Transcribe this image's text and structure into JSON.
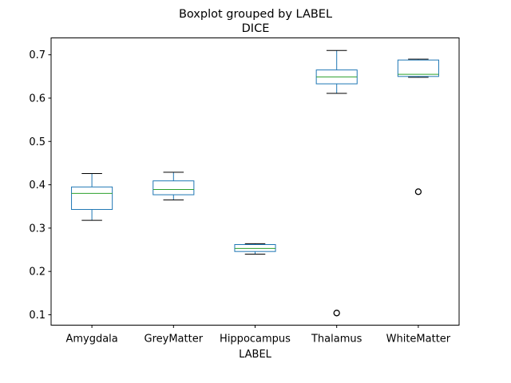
{
  "chart_data": {
    "type": "boxplot",
    "suptitle": "Boxplot grouped by LABEL",
    "title": "DICE",
    "xlabel": "LABEL",
    "ylabel": "",
    "ylim": [
      0.076,
      0.739
    ],
    "yticks": [
      "0.1",
      "0.2",
      "0.3",
      "0.4",
      "0.5",
      "0.6",
      "0.7"
    ],
    "grid": false,
    "colors": {
      "box": "#1f77b4",
      "median": "#2ca02c",
      "whisker": "#1f77b4",
      "cap": "#000000",
      "flier": "#000000"
    },
    "categories": [
      "Amygdala",
      "GreyMatter",
      "Hippocampus",
      "Thalamus",
      "WhiteMatter"
    ],
    "boxes": [
      {
        "label": "Amygdala",
        "whislo": 0.318,
        "q1": 0.343,
        "med": 0.38,
        "q3": 0.395,
        "whishi": 0.426,
        "fliers": []
      },
      {
        "label": "GreyMatter",
        "whislo": 0.365,
        "q1": 0.377,
        "med": 0.389,
        "q3": 0.409,
        "whishi": 0.429,
        "fliers": []
      },
      {
        "label": "Hippocampus",
        "whislo": 0.24,
        "q1": 0.246,
        "med": 0.253,
        "q3": 0.262,
        "whishi": 0.264,
        "fliers": []
      },
      {
        "label": "Thalamus",
        "whislo": 0.611,
        "q1": 0.633,
        "med": 0.649,
        "q3": 0.665,
        "whishi": 0.71,
        "fliers": [
          0.104
        ]
      },
      {
        "label": "WhiteMatter",
        "whislo": 0.648,
        "q1": 0.65,
        "med": 0.655,
        "q3": 0.688,
        "whishi": 0.69,
        "fliers": [
          0.384
        ]
      }
    ]
  }
}
